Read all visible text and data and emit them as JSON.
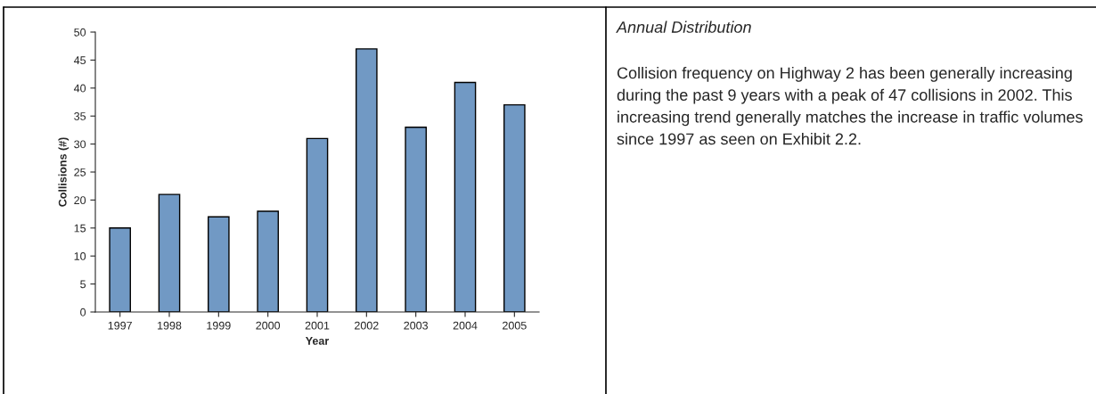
{
  "chart_data": {
    "type": "bar",
    "title": "Annual Distribution",
    "xlabel": "Year",
    "ylabel": "Collisions (#)",
    "categories": [
      "1997",
      "1998",
      "1999",
      "2000",
      "2001",
      "2002",
      "2003",
      "2004",
      "2005"
    ],
    "values": [
      15,
      21,
      17,
      18,
      31,
      47,
      33,
      41,
      37
    ],
    "color": "#7199c4",
    "ylim": [
      0,
      50
    ],
    "yticks": [
      0,
      5,
      10,
      15,
      20,
      25,
      30,
      35,
      40,
      45,
      50
    ],
    "grid": false,
    "legend": false,
    "annotations": [
      "Collision frequency on Highway 2 has been generally increasing during the past 9 years with a peak of 47 collisions in 2002. This increasing trend generally matches the increase in traffic volumes since 1997 as seen on Exhibit 2.2."
    ]
  }
}
